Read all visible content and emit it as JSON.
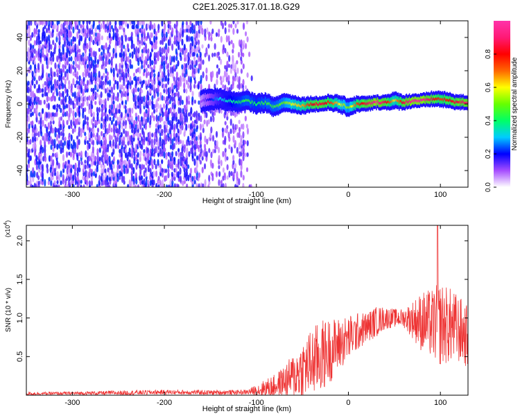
{
  "title": "C2E1.2025.317.01.18.G29",
  "chart_data": [
    {
      "type": "heatmap",
      "name": "spectrogram",
      "xlabel": "Height of straight line (km)",
      "ylabel": "Frequency (Hz)",
      "xlim": [
        -350,
        130
      ],
      "ylim": [
        -50,
        50
      ],
      "xticks": [
        -300,
        -200,
        -100,
        0,
        100
      ],
      "xtick_labels": [
        "-300",
        "-200",
        "-100",
        "0",
        "100"
      ],
      "yticks": [
        -40,
        -20,
        0,
        20,
        40
      ],
      "ytick_labels": [
        "-40",
        "-20",
        "0",
        "20",
        "40"
      ],
      "noise_region_km": [
        -350,
        -100
      ],
      "signal_centerline": {
        "x": [
          -160,
          -150,
          -140,
          -130,
          -120,
          -110,
          -100,
          -90,
          -80,
          -70,
          -60,
          -50,
          -40,
          -30,
          -20,
          -10,
          0,
          10,
          20,
          30,
          40,
          50,
          60,
          70,
          80,
          90,
          100,
          110,
          120,
          130
        ],
        "freq": [
          2,
          3,
          3,
          2,
          1,
          2,
          0,
          1,
          -2,
          1,
          0,
          -1,
          0,
          0,
          1,
          0,
          -2,
          0,
          0,
          1,
          1,
          2,
          1,
          2,
          2,
          3,
          3,
          2,
          1,
          1
        ],
        "amplitude": [
          0.1,
          0.2,
          0.3,
          0.35,
          0.4,
          0.45,
          0.4,
          0.45,
          0.45,
          0.5,
          0.6,
          0.65,
          0.8,
          0.85,
          0.75,
          0.6,
          0.5,
          0.75,
          0.85,
          0.95,
          0.85,
          0.6,
          0.85,
          0.95,
          0.95,
          0.85,
          0.75,
          0.8,
          0.85,
          0.9
        ]
      },
      "colorbar": {
        "label": "Normalized spectral amplitude",
        "range": [
          0,
          1
        ],
        "ticks": [
          0.0,
          0.2,
          0.4,
          0.6,
          0.8
        ],
        "tick_labels": [
          "0.0",
          "0.2",
          "0.4",
          "0.6",
          "0.8"
        ],
        "colors": [
          "#ffffff",
          "#a64dff",
          "#0000ff",
          "#00ccff",
          "#00ff66",
          "#66ff00",
          "#ffff00",
          "#ff6600",
          "#ff0000",
          "#ff1a75",
          "#ff33aa"
        ]
      }
    },
    {
      "type": "line",
      "name": "snr",
      "xlabel": "Height of straight line (km)",
      "ylabel": "SNR (10 * v/v)",
      "y_multiplier": "(x10",
      "y_multiplier_exp": "4",
      "y_multiplier_close": ")",
      "xlim": [
        -350,
        130
      ],
      "ylim": [
        0,
        2.2
      ],
      "xticks": [
        -300,
        -200,
        -100,
        0,
        100
      ],
      "xtick_labels": [
        "-300",
        "-200",
        "-100",
        "0",
        "100"
      ],
      "yticks": [
        0.5,
        1.0,
        1.5,
        2.0
      ],
      "ytick_labels": [
        "0.5",
        "1.0",
        "1.5",
        "2.0"
      ],
      "color": "#ee3333",
      "envelope": {
        "x": [
          -350,
          -300,
          -250,
          -200,
          -150,
          -110,
          -100,
          -90,
          -80,
          -70,
          -60,
          -50,
          -40,
          -30,
          -20,
          -10,
          0,
          10,
          20,
          30,
          40,
          50,
          60,
          70,
          80,
          90,
          100,
          110,
          120,
          130
        ],
        "mean": [
          0.02,
          0.025,
          0.03,
          0.04,
          0.035,
          0.04,
          0.06,
          0.09,
          0.12,
          0.18,
          0.24,
          0.34,
          0.42,
          0.5,
          0.58,
          0.66,
          0.74,
          0.82,
          0.88,
          0.95,
          1.0,
          1.0,
          1.0,
          0.98,
          0.95,
          0.92,
          0.92,
          0.9,
          0.85,
          0.75
        ],
        "amplitude": [
          0.02,
          0.02,
          0.03,
          0.03,
          0.03,
          0.03,
          0.08,
          0.12,
          0.15,
          0.2,
          0.3,
          0.38,
          0.45,
          0.48,
          0.42,
          0.35,
          0.3,
          0.25,
          0.2,
          0.2,
          0.15,
          0.12,
          0.12,
          0.25,
          0.4,
          0.45,
          0.55,
          0.5,
          0.45,
          0.4
        ]
      },
      "peak": {
        "x": 97,
        "y": 2.25
      }
    }
  ]
}
